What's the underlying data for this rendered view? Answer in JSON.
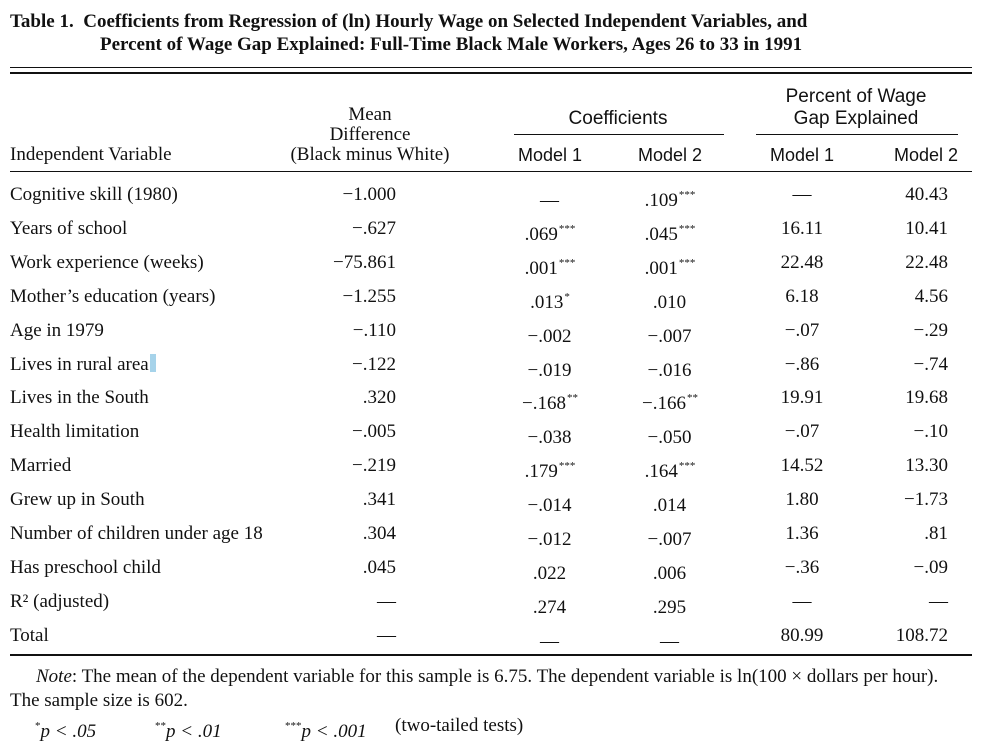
{
  "title": {
    "prefix": "Table 1.",
    "line1": "Coefficients from Regression of (ln) Hourly Wage on Selected Independent Variables, and",
    "line2": "Percent of Wage Gap Explained: Full-Time Black Male Workers, Ages 26 to 33 in 1991"
  },
  "headers": {
    "independent_variable": "Independent Variable",
    "mean_diff": [
      "Mean",
      "Difference",
      "(Black minus White)"
    ],
    "coefficients": "Coefficients",
    "percent_gap": [
      "Percent of Wage",
      "Gap Explained"
    ],
    "model1": "Model 1",
    "model2": "Model 2"
  },
  "rows": [
    {
      "variable": "Cognitive skill (1980)",
      "mean_diff": "−1.000",
      "coef_m1": "—",
      "coef_m1_sig": "",
      "coef_m2": ".109",
      "coef_m2_sig": "***",
      "pct_m1": "—",
      "pct_m2": "40.43"
    },
    {
      "variable": "Years of school",
      "mean_diff": "−.627",
      "coef_m1": ".069",
      "coef_m1_sig": "***",
      "coef_m2": ".045",
      "coef_m2_sig": "***",
      "pct_m1": "16.11",
      "pct_m2": "10.41"
    },
    {
      "variable": "Work experience (weeks)",
      "mean_diff": "−75.861",
      "coef_m1": ".001",
      "coef_m1_sig": "***",
      "coef_m2": ".001",
      "coef_m2_sig": "***",
      "pct_m1": "22.48",
      "pct_m2": "22.48"
    },
    {
      "variable": "Mother’s education (years)",
      "mean_diff": "−1.255",
      "coef_m1": ".013",
      "coef_m1_sig": "*",
      "coef_m2": ".010",
      "coef_m2_sig": "",
      "pct_m1": "6.18",
      "pct_m2": "4.56"
    },
    {
      "variable": "Age in 1979",
      "mean_diff": "−.110",
      "coef_m1": "−.002",
      "coef_m1_sig": "",
      "coef_m2": "−.007",
      "coef_m2_sig": "",
      "pct_m1": "−.07",
      "pct_m2": "−.29"
    },
    {
      "variable": "Lives in rural area",
      "mean_diff": "−.122",
      "coef_m1": "−.019",
      "coef_m1_sig": "",
      "coef_m2": "−.016",
      "coef_m2_sig": "",
      "pct_m1": "−.86",
      "pct_m2": "−.74"
    },
    {
      "variable": "Lives in the South",
      "mean_diff": ".320",
      "coef_m1": "−.168",
      "coef_m1_sig": "**",
      "coef_m2": "−.166",
      "coef_m2_sig": "**",
      "pct_m1": "19.91",
      "pct_m2": "19.68"
    },
    {
      "variable": "Health limitation",
      "mean_diff": "−.005",
      "coef_m1": "−.038",
      "coef_m1_sig": "",
      "coef_m2": "−.050",
      "coef_m2_sig": "",
      "pct_m1": "−.07",
      "pct_m2": "−.10"
    },
    {
      "variable": "Married",
      "mean_diff": "−.219",
      "coef_m1": ".179",
      "coef_m1_sig": "***",
      "coef_m2": ".164",
      "coef_m2_sig": "***",
      "pct_m1": "14.52",
      "pct_m2": "13.30"
    },
    {
      "variable": "Grew up in South",
      "mean_diff": ".341",
      "coef_m1": "−.014",
      "coef_m1_sig": "",
      "coef_m2": ".014",
      "coef_m2_sig": "",
      "pct_m1": "1.80",
      "pct_m2": "−1.73"
    },
    {
      "variable": "Number of children under age 18",
      "mean_diff": ".304",
      "coef_m1": "−.012",
      "coef_m1_sig": "",
      "coef_m2": "−.007",
      "coef_m2_sig": "",
      "pct_m1": "1.36",
      "pct_m2": ".81"
    },
    {
      "variable": "Has preschool child",
      "mean_diff": ".045",
      "coef_m1": ".022",
      "coef_m1_sig": "",
      "coef_m2": ".006",
      "coef_m2_sig": "",
      "pct_m1": "−.36",
      "pct_m2": "−.09"
    },
    {
      "variable": "R² (adjusted)",
      "mean_diff": "—",
      "coef_m1": ".274",
      "coef_m1_sig": "",
      "coef_m2": ".295",
      "coef_m2_sig": "",
      "pct_m1": "—",
      "pct_m2": "—"
    },
    {
      "variable": "Total",
      "mean_diff": "—",
      "coef_m1": "—",
      "coef_m1_sig": "",
      "coef_m2": "—",
      "coef_m2_sig": "",
      "pct_m1": "80.99",
      "pct_m2": "108.72"
    }
  ],
  "note": {
    "label": "Note",
    "text": ": The mean of the dependent variable for this sample is 6.75. The dependent variable is ln(100 × dollars per hour). The sample size is 602."
  },
  "significance": [
    {
      "stars": "*",
      "text": "p < .05"
    },
    {
      "stars": "**",
      "text": "p < .01"
    },
    {
      "stars": "***",
      "text": "p < .001"
    }
  ],
  "significance_suffix": "(two-tailed tests)"
}
